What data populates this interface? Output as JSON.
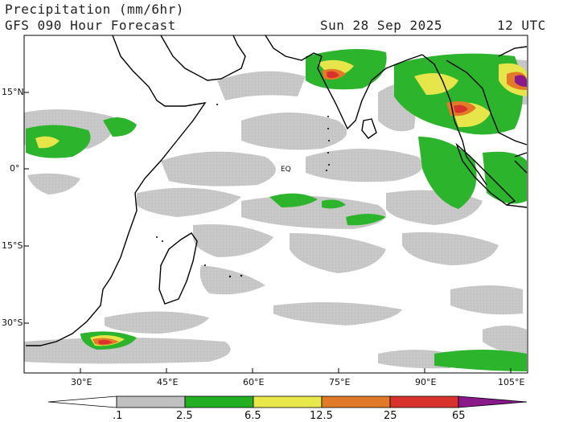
{
  "header": {
    "title": "Precipitation (mm/6hr)",
    "subtitle": "GFS 090 Hour Forecast",
    "date": "Sun 28 Sep 2025",
    "time": "12 UTC"
  },
  "map": {
    "lat_labels": [
      "15°N",
      "0°",
      "15°S",
      "30°S"
    ],
    "lon_labels": [
      "30°E",
      "45°E",
      "60°E",
      "75°E",
      "90°E",
      "105°E"
    ],
    "equator_marker": "EQ",
    "extent": {
      "lon_min": 22,
      "lon_max": 110,
      "lat_min": -38,
      "lat_max": 26
    }
  },
  "legend": {
    "ticks": [
      ".1",
      "2.5",
      "6.5",
      "12.5",
      "25",
      "65"
    ],
    "colors": [
      "#c0c0c0",
      "#22b022",
      "#e8e84a",
      "#e07a28",
      "#d8322c",
      "#8a1a8a"
    ]
  }
}
